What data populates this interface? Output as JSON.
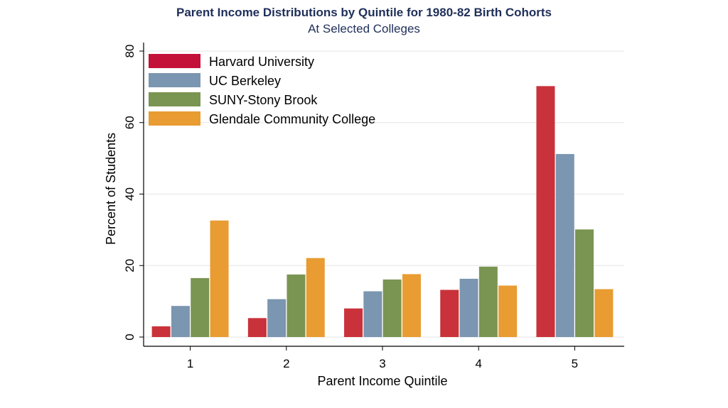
{
  "chart_data": {
    "type": "bar",
    "title": "Parent Income Distributions by Quintile for 1980-82 Birth Cohorts",
    "subtitle": "At Selected Colleges",
    "xlabel": "Parent Income Quintile",
    "ylabel": "Percent of Students",
    "categories": [
      "1",
      "2",
      "3",
      "4",
      "5"
    ],
    "ylim": [
      0,
      80
    ],
    "yticks": [
      "0",
      "20",
      "40",
      "60",
      "80"
    ],
    "grid": true,
    "legend_position": "top-left",
    "series": [
      {
        "name": "Harvard University",
        "color": "#c9323a",
        "legend_color": "#c4113a",
        "values": [
          3.0,
          5.3,
          8.0,
          13.2,
          70.2
        ]
      },
      {
        "name": "UC Berkeley",
        "color": "#7a96b0",
        "legend_color": "#7a96b0",
        "values": [
          8.7,
          10.6,
          12.8,
          16.3,
          51.2
        ]
      },
      {
        "name": "SUNY-Stony Brook",
        "color": "#7a9452",
        "legend_color": "#7a9452",
        "values": [
          16.5,
          17.5,
          16.1,
          19.7,
          30.1
        ]
      },
      {
        "name": "Glendale Community College",
        "color": "#e89c32",
        "legend_color": "#e89c32",
        "values": [
          32.6,
          22.1,
          17.6,
          14.4,
          13.4
        ]
      }
    ]
  }
}
